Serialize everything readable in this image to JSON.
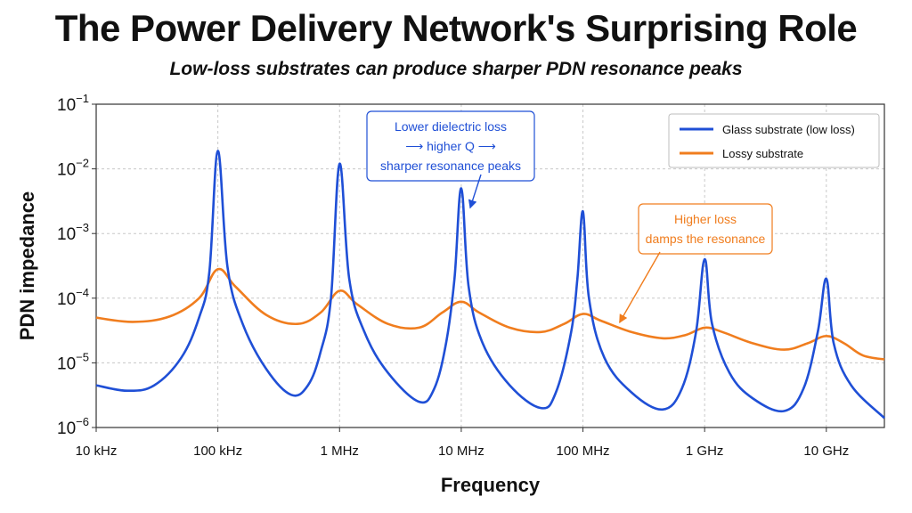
{
  "title": "The Power Delivery Network's Surprising Role",
  "subtitle": "Low-loss substrates can produce sharper PDN resonance peaks",
  "chart_data": {
    "type": "line",
    "xlabel": "Frequency",
    "ylabel": "PDN impedance",
    "x_scale": "log",
    "y_scale": "log",
    "xlim": [
      10000,
      30000000000
    ],
    "ylim": [
      1e-06,
      0.1
    ],
    "x_ticks": [
      {
        "value": 10000,
        "label": "10 kHz"
      },
      {
        "value": 100000,
        "label": "100 kHz"
      },
      {
        "value": 1000000,
        "label": "1 MHz"
      },
      {
        "value": 10000000,
        "label": "10 MHz"
      },
      {
        "value": 100000000,
        "label": "100 MHz"
      },
      {
        "value": 1000000000,
        "label": "1 GHz"
      },
      {
        "value": 10000000000,
        "label": "10 GHz"
      }
    ],
    "y_ticks": [
      {
        "value": 0.1,
        "base": "10",
        "exp": "−1"
      },
      {
        "value": 0.01,
        "base": "10",
        "exp": "−2"
      },
      {
        "value": 0.001,
        "base": "10",
        "exp": "−3"
      },
      {
        "value": 0.0001,
        "base": "10",
        "exp": "−4"
      },
      {
        "value": 1e-05,
        "base": "10",
        "exp": "−5"
      },
      {
        "value": 1e-06,
        "base": "10",
        "exp": "−6"
      }
    ],
    "grid": true,
    "legend_position": "top-right",
    "series": [
      {
        "name": "Glass substrate (low loss)",
        "color": "#1f4fd6",
        "points": [
          [
            10000,
            4.5e-06
          ],
          [
            18000,
            3.7e-06
          ],
          [
            30000,
            4.5e-06
          ],
          [
            50000,
            1.2e-05
          ],
          [
            70000,
            5e-05
          ],
          [
            85000,
            0.00025
          ],
          [
            100000,
            0.019
          ],
          [
            120000,
            0.0003
          ],
          [
            160000,
            4e-05
          ],
          [
            250000,
            8e-06
          ],
          [
            400000,
            3.2e-06
          ],
          [
            550000,
            4.5e-06
          ],
          [
            700000,
            1.5e-05
          ],
          [
            850000,
            0.0001
          ],
          [
            1000000,
            0.012
          ],
          [
            1200000,
            0.0002
          ],
          [
            1600000,
            3e-05
          ],
          [
            2500000,
            7e-06
          ],
          [
            4500000,
            2.5e-06
          ],
          [
            6000000,
            4e-06
          ],
          [
            7500000,
            2e-05
          ],
          [
            8800000,
            0.0002
          ],
          [
            10000000,
            0.005
          ],
          [
            11500000,
            0.00015
          ],
          [
            15000000,
            2e-05
          ],
          [
            25000000,
            4.5e-06
          ],
          [
            45000000,
            2e-06
          ],
          [
            60000000,
            3.5e-06
          ],
          [
            80000000,
            3e-05
          ],
          [
            90000000,
            0.0002
          ],
          [
            100000000,
            0.0022
          ],
          [
            112000000,
            0.0001
          ],
          [
            150000000,
            1.2e-05
          ],
          [
            250000000,
            3.5e-06
          ],
          [
            450000000,
            1.9e-06
          ],
          [
            650000000,
            4e-06
          ],
          [
            850000000,
            3e-05
          ],
          [
            1000000000,
            0.0004
          ],
          [
            1150000000,
            4e-05
          ],
          [
            1600000000,
            7e-06
          ],
          [
            2500000000,
            2.8e-06
          ],
          [
            4500000000,
            1.8e-06
          ],
          [
            6500000000,
            4e-06
          ],
          [
            8500000000,
            3e-05
          ],
          [
            10000000000,
            0.0002
          ],
          [
            11500000000,
            2e-05
          ],
          [
            16000000000,
            4.5e-06
          ],
          [
            30000000000,
            1.4e-06
          ]
        ]
      },
      {
        "name": "Lossy substrate",
        "color": "#f07d1e",
        "points": [
          [
            10000,
            5e-05
          ],
          [
            20000,
            4.3e-05
          ],
          [
            40000,
            5.2e-05
          ],
          [
            70000,
            0.0001
          ],
          [
            100000,
            0.00028
          ],
          [
            140000,
            0.00015
          ],
          [
            250000,
            5.5e-05
          ],
          [
            450000,
            4e-05
          ],
          [
            700000,
            6e-05
          ],
          [
            1000000,
            0.00013
          ],
          [
            1400000,
            8e-05
          ],
          [
            2500000,
            4e-05
          ],
          [
            4500000,
            3.5e-05
          ],
          [
            7000000,
            6e-05
          ],
          [
            10000000,
            8.8e-05
          ],
          [
            14000000,
            6e-05
          ],
          [
            25000000,
            3.5e-05
          ],
          [
            45000000,
            3e-05
          ],
          [
            70000000,
            4e-05
          ],
          [
            100000000,
            5.7e-05
          ],
          [
            140000000,
            4.5e-05
          ],
          [
            250000000,
            3e-05
          ],
          [
            450000000,
            2.4e-05
          ],
          [
            700000000,
            2.7e-05
          ],
          [
            1000000000,
            3.5e-05
          ],
          [
            1400000000,
            3e-05
          ],
          [
            2500000000,
            2e-05
          ],
          [
            4500000000,
            1.6e-05
          ],
          [
            7000000000,
            2e-05
          ],
          [
            10000000000,
            2.6e-05
          ],
          [
            14000000000,
            2e-05
          ],
          [
            20000000000,
            1.3e-05
          ],
          [
            30000000000,
            1.13e-05
          ]
        ]
      }
    ],
    "annotations": [
      {
        "lines": [
          "Lower dielectric loss",
          "⟶ higher Q ⟶",
          "sharper resonance peaks"
        ],
        "color": "#1f4fd6",
        "points_to": [
          10000000,
          0.005
        ]
      },
      {
        "lines": [
          "Higher loss",
          "damps the resonance"
        ],
        "color": "#f07d1e",
        "points_to": [
          200000000,
          4.2e-05
        ]
      }
    ]
  }
}
